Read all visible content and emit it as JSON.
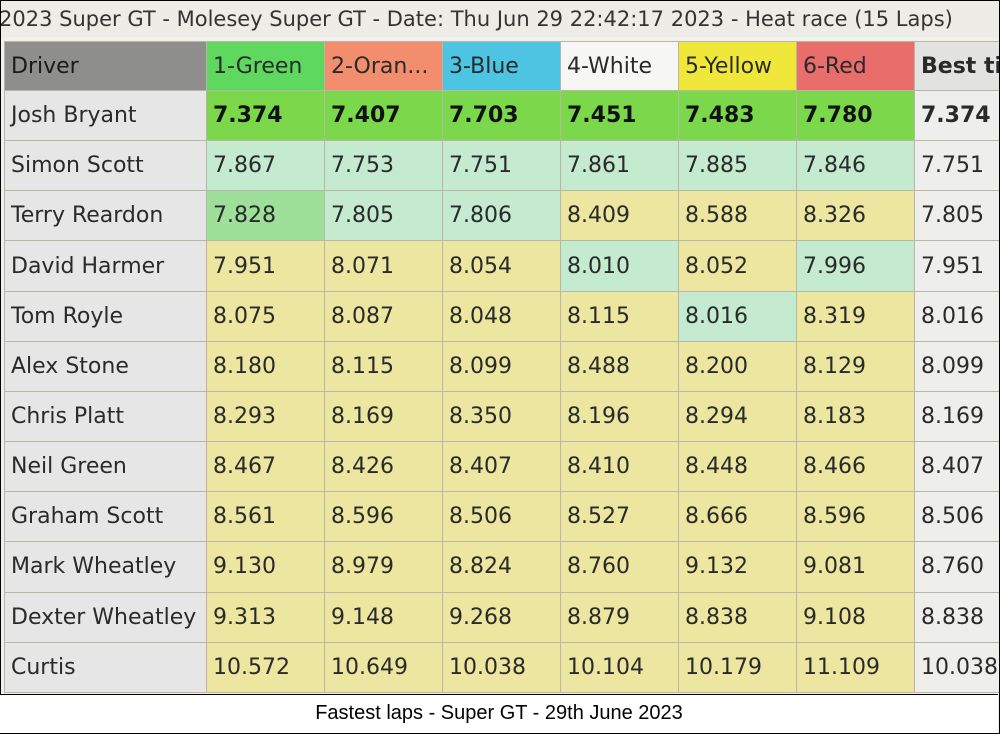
{
  "header": {
    "title": "2023 Super GT - Molesey Super GT - Date: Thu Jun 29 22:42:17 2023 - Heat race (15 Laps)"
  },
  "table": {
    "columns": [
      "Driver",
      "1-Green",
      "2-Oran...",
      "3-Blue",
      "4-White",
      "5-Yellow",
      "6-Red",
      "Best ti"
    ],
    "rows": [
      [
        "Josh Bryant",
        "7.374",
        "7.407",
        "7.703",
        "7.451",
        "7.483",
        "7.780",
        "7.374"
      ],
      [
        "Simon Scott",
        "7.867",
        "7.753",
        "7.751",
        "7.861",
        "7.885",
        "7.846",
        "7.751"
      ],
      [
        "Terry Reardon",
        "7.828",
        "7.805",
        "7.806",
        "8.409",
        "8.588",
        "8.326",
        "7.805"
      ],
      [
        "David Harmer",
        "7.951",
        "8.071",
        "8.054",
        "8.010",
        "8.052",
        "7.996",
        "7.951"
      ],
      [
        "Tom Royle",
        "8.075",
        "8.087",
        "8.048",
        "8.115",
        "8.016",
        "8.319",
        "8.016"
      ],
      [
        "Alex Stone",
        "8.180",
        "8.115",
        "8.099",
        "8.488",
        "8.200",
        "8.129",
        "8.099"
      ],
      [
        "Chris Platt",
        "8.293",
        "8.169",
        "8.350",
        "8.196",
        "8.294",
        "8.183",
        "8.169"
      ],
      [
        "Neil Green",
        "8.467",
        "8.426",
        "8.407",
        "8.410",
        "8.448",
        "8.466",
        "8.407"
      ],
      [
        "Graham Scott",
        "8.561",
        "8.596",
        "8.506",
        "8.527",
        "8.666",
        "8.596",
        "8.506"
      ],
      [
        "Mark Wheatley",
        "9.130",
        "8.979",
        "8.824",
        "8.760",
        "9.132",
        "9.081",
        "8.760"
      ],
      [
        "Dexter Wheatley",
        "9.313",
        "9.148",
        "9.268",
        "8.879",
        "8.838",
        "9.108",
        "8.838"
      ],
      [
        "Curtis",
        "10.572",
        "10.649",
        "10.038",
        "10.104",
        "10.179",
        "11.109",
        "10.038"
      ]
    ]
  },
  "caption": "Fastest laps - Super GT - 29th June 2023"
}
